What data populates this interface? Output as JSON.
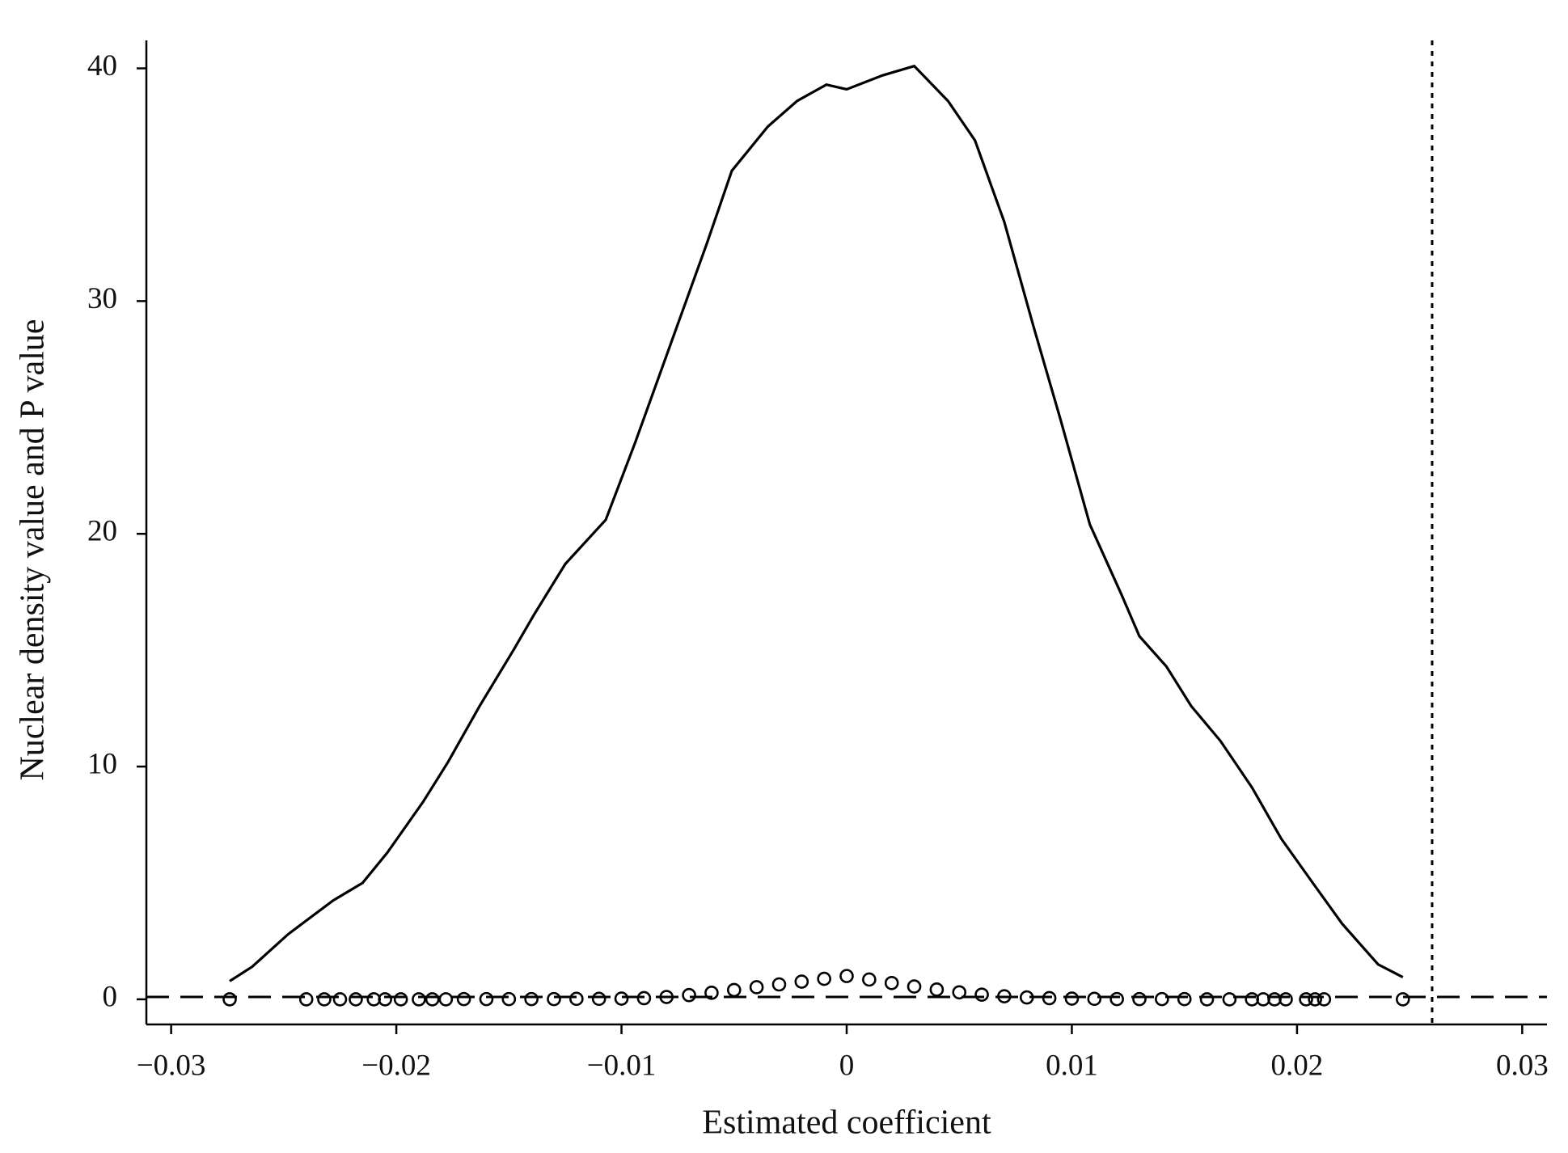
{
  "chart_data": {
    "type": "line",
    "x_label": "Estimated coefficient",
    "y_label": "Nuclear density value and P value",
    "xlim": [
      -0.0311,
      0.0311
    ],
    "ylim": [
      -1.08,
      41.2
    ],
    "xticks": [
      {
        "value": -0.03,
        "label": "−0.03"
      },
      {
        "value": -0.02,
        "label": "−0.02"
      },
      {
        "value": -0.01,
        "label": "−0.01"
      },
      0,
      0.01,
      0.02,
      0.03
    ],
    "yticks": [
      0,
      10,
      20,
      30,
      40
    ],
    "hlines": [
      0.1
    ],
    "vlines": [
      0.026
    ],
    "series": [
      {
        "type": "line",
        "color": "#000000",
        "x": [
          -0.0274,
          -0.0264,
          -0.0248,
          -0.0228,
          -0.0215,
          -0.0204,
          -0.0188,
          -0.0177,
          -0.0163,
          -0.0148,
          -0.0139,
          -0.0125,
          -0.0107,
          -0.0094,
          -0.0078,
          -0.0062,
          -0.0051,
          -0.0035,
          -0.0022,
          -0.0009,
          0,
          0.0016,
          0.003,
          0.0045,
          0.0057,
          0.007,
          0.0083,
          0.0095,
          0.0108,
          0.0122,
          0.013,
          0.0142,
          0.0153,
          0.0166,
          0.018,
          0.0193,
          0.0207,
          0.022,
          0.0236,
          0.0247
        ],
        "values": [
          0.78,
          1.4,
          2.8,
          4.25,
          5.0,
          6.3,
          8.5,
          10.2,
          12.6,
          15.0,
          16.5,
          18.7,
          20.6,
          23.9,
          28.2,
          32.5,
          35.6,
          37.5,
          38.6,
          39.3,
          39.1,
          39.7,
          40.1,
          38.6,
          36.9,
          33.4,
          28.9,
          24.9,
          20.4,
          17.4,
          15.6,
          14.3,
          12.6,
          11.1,
          9.1,
          6.9,
          5.0,
          3.25,
          1.5,
          0.95
        ]
      },
      {
        "type": "scatter",
        "color": "#000000",
        "x": [
          -0.0274,
          -0.024,
          -0.0232,
          -0.0225,
          -0.0218,
          -0.021,
          -0.0205,
          -0.0198,
          -0.019,
          -0.0184,
          -0.0178,
          -0.017,
          -0.016,
          -0.015,
          -0.014,
          -0.013,
          -0.012,
          -0.011,
          -0.01,
          -0.009,
          -0.008,
          -0.007,
          -0.006,
          -0.005,
          -0.004,
          -0.003,
          -0.002,
          -0.001,
          0,
          0.001,
          0.002,
          0.003,
          0.004,
          0.005,
          0.006,
          0.007,
          0.008,
          0.009,
          0.01,
          0.011,
          0.012,
          0.013,
          0.014,
          0.015,
          0.016,
          0.017,
          0.018,
          0.0185,
          0.019,
          0.0195,
          0.0204,
          0.0208,
          0.0212,
          0.0247
        ],
        "values": [
          0,
          0,
          0,
          0,
          0,
          0,
          0,
          0,
          0,
          0,
          0,
          0.01,
          0.01,
          0.01,
          0.01,
          0.01,
          0.02,
          0.02,
          0.03,
          0.05,
          0.1,
          0.18,
          0.28,
          0.4,
          0.52,
          0.64,
          0.76,
          0.88,
          1.0,
          0.85,
          0.7,
          0.55,
          0.42,
          0.3,
          0.2,
          0.13,
          0.08,
          0.05,
          0.03,
          0.02,
          0.01,
          0.01,
          0.01,
          0.01,
          0,
          0,
          0,
          0,
          0,
          0,
          0,
          0,
          0,
          0
        ]
      }
    ]
  }
}
